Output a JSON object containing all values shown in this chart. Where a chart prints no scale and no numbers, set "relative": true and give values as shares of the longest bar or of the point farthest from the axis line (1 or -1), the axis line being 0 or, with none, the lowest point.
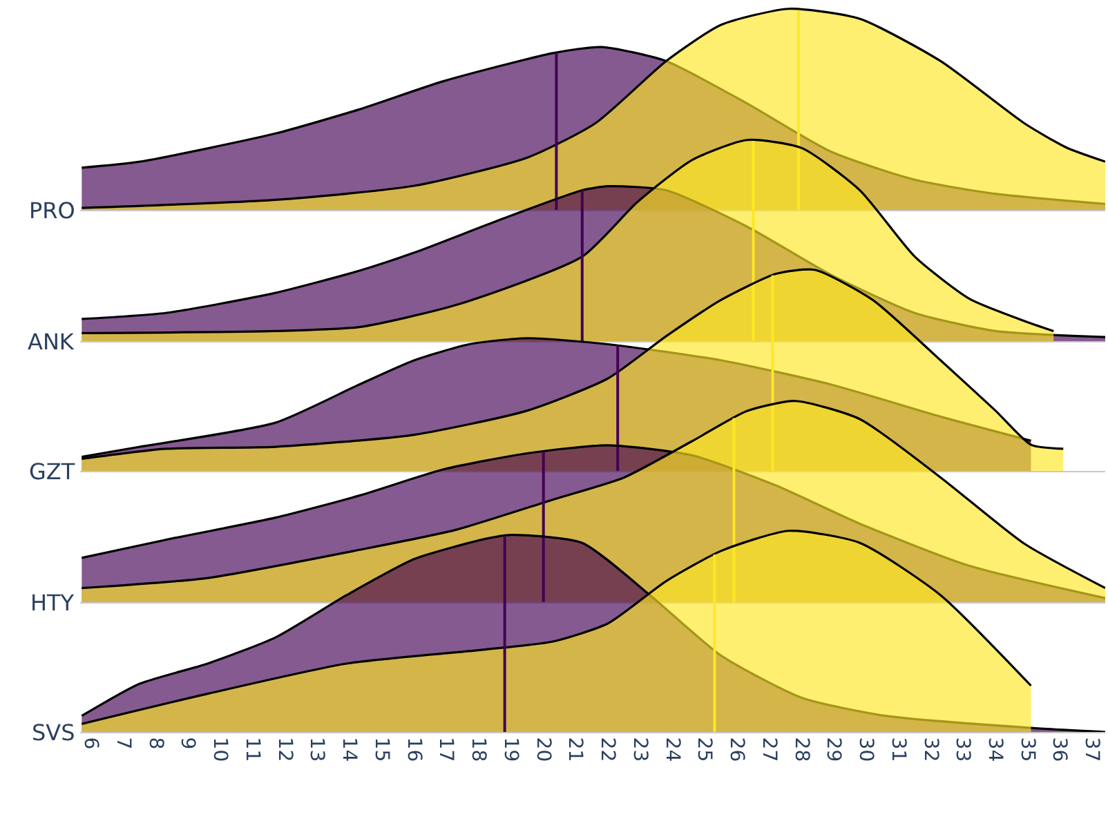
{
  "chart_data": [
    {
      "type": "area",
      "relative": true,
      "ylabel": "PRO",
      "xlim": [
        5.65,
        37.4
      ],
      "tick_labels": false,
      "grid": false,
      "legend": false,
      "series": [
        {
          "color": "#440154",
          "x": [
            5.7,
            7.5,
            11.7,
            14.3,
            16.9,
            20.3,
            21.8,
            23.8,
            26.3,
            28.9,
            31.5,
            34,
            37.4
          ],
          "values": [
            0.21,
            0.24,
            0.38,
            0.5,
            0.64,
            0.78,
            0.81,
            0.74,
            0.53,
            0.29,
            0.15,
            0.08,
            0.03
          ]
        },
        {
          "color": "#fde725",
          "x": [
            5.7,
            11.7,
            16,
            19.5,
            21.6,
            23.8,
            25.5,
            27.6,
            29.8,
            32.3,
            34.9,
            36.2,
            37.4
          ],
          "values": [
            0.01,
            0.05,
            0.12,
            0.26,
            0.43,
            0.74,
            0.92,
            1,
            0.95,
            0.74,
            0.43,
            0.31,
            0.24
          ]
        }
      ],
      "ref_lines": [
        {
          "axis": "x",
          "value": 20.4,
          "color": "#440154"
        },
        {
          "axis": "x",
          "value": 27.9,
          "color": "#fde725"
        }
      ]
    },
    {
      "type": "area",
      "relative": true,
      "ylabel": "ANK",
      "xlim": [
        5.65,
        37.4
      ],
      "tick_labels": false,
      "grid": false,
      "legend": false,
      "series": [
        {
          "color": "#440154",
          "x": [
            5.7,
            8.3,
            11.7,
            14.3,
            16,
            18.6,
            21.2,
            22,
            23.8,
            26.3,
            28.9,
            31.5,
            34,
            37.4
          ],
          "values": [
            0.11,
            0.14,
            0.24,
            0.35,
            0.44,
            0.6,
            0.75,
            0.77,
            0.75,
            0.57,
            0.33,
            0.14,
            0.05,
            0.02
          ]
        },
        {
          "color": "#fde725",
          "x": [
            5.7,
            11.7,
            14.3,
            17.3,
            21.2,
            22.9,
            24.6,
            26.3,
            28,
            29.8,
            31.5,
            33.2,
            34.9,
            35.8
          ],
          "values": [
            0.04,
            0.05,
            0.07,
            0.18,
            0.42,
            0.69,
            0.9,
            1,
            0.96,
            0.75,
            0.42,
            0.21,
            0.1,
            0.05
          ]
        }
      ],
      "ref_lines": [
        {
          "axis": "x",
          "value": 21.2,
          "color": "#440154"
        },
        {
          "axis": "x",
          "value": 26.5,
          "color": "#fde725"
        }
      ]
    },
    {
      "type": "area",
      "relative": true,
      "ylabel": "GZT",
      "xlim": [
        5.65,
        37.4
      ],
      "tick_labels": false,
      "grid": false,
      "legend": false,
      "series": [
        {
          "color": "#440154",
          "x": [
            5.7,
            7.5,
            11.7,
            14.3,
            16,
            17.7,
            19.5,
            22,
            25.5,
            28.9,
            32.3,
            35.1
          ],
          "values": [
            0.07,
            0.12,
            0.24,
            0.43,
            0.55,
            0.63,
            0.66,
            0.63,
            0.55,
            0.43,
            0.27,
            0.15
          ]
        },
        {
          "color": "#fde725",
          "x": [
            5.7,
            8.3,
            11.7,
            16,
            19.5,
            22,
            23.8,
            25.5,
            27.2,
            28.4,
            30.2,
            32.3,
            34,
            35.1,
            36.1
          ],
          "values": [
            0.06,
            0.11,
            0.12,
            0.18,
            0.3,
            0.46,
            0.67,
            0.85,
            0.98,
            1,
            0.85,
            0.55,
            0.3,
            0.13,
            0.11
          ]
        }
      ],
      "ref_lines": [
        {
          "axis": "x",
          "value": 22.3,
          "color": "#440154"
        },
        {
          "axis": "x",
          "value": 27.1,
          "color": "#fde725"
        }
      ]
    },
    {
      "type": "area",
      "relative": true,
      "ylabel": "HTY",
      "xlim": [
        5.65,
        37.4
      ],
      "tick_labels": false,
      "grid": false,
      "legend": false,
      "series": [
        {
          "color": "#440154",
          "x": [
            5.7,
            8.3,
            11.7,
            14.3,
            16.9,
            19.5,
            22,
            24.6,
            27.2,
            29.8,
            33.2,
            37.4
          ],
          "values": [
            0.22,
            0.31,
            0.42,
            0.53,
            0.66,
            0.74,
            0.78,
            0.73,
            0.58,
            0.39,
            0.18,
            0.02
          ]
        },
        {
          "color": "#fde725",
          "x": [
            5.7,
            9.6,
            14.3,
            17.3,
            20.3,
            22.5,
            24.6,
            26.3,
            27.8,
            29.8,
            32.3,
            34.9,
            37.4
          ],
          "values": [
            0.07,
            0.12,
            0.26,
            0.36,
            0.51,
            0.62,
            0.8,
            0.95,
            1,
            0.91,
            0.62,
            0.29,
            0.07
          ]
        }
      ],
      "ref_lines": [
        {
          "axis": "x",
          "value": 20,
          "color": "#440154"
        },
        {
          "axis": "x",
          "value": 25.9,
          "color": "#fde725"
        }
      ]
    },
    {
      "type": "area",
      "relative": true,
      "ylabel": "SVS",
      "xlim": [
        5.65,
        37.4
      ],
      "xticks": [
        6,
        7,
        8,
        9,
        10,
        11,
        12,
        13,
        14,
        15,
        16,
        17,
        18,
        19,
        20,
        21,
        22,
        23,
        24,
        25,
        26,
        27,
        28,
        29,
        30,
        31,
        32,
        33,
        34,
        35,
        36,
        37
      ],
      "tick_labels": "x",
      "grid": false,
      "legend": false,
      "series": [
        {
          "color": "#440154",
          "x": [
            5.7,
            7.5,
            9.6,
            11.7,
            13.9,
            16,
            18.2,
            19,
            21.2,
            23.3,
            25.5,
            28,
            30.6,
            35.1,
            37.4
          ],
          "values": [
            0.08,
            0.24,
            0.34,
            0.47,
            0.68,
            0.86,
            0.96,
            0.98,
            0.94,
            0.68,
            0.38,
            0.17,
            0.08,
            0.02,
            0
          ]
        },
        {
          "color": "#fde725",
          "x": [
            5.7,
            9.6,
            13.9,
            18.2,
            20.3,
            22,
            23.8,
            25.5,
            27.6,
            29.8,
            32.3,
            35.1
          ],
          "values": [
            0.04,
            0.19,
            0.34,
            0.41,
            0.45,
            0.54,
            0.75,
            0.9,
            1,
            0.94,
            0.68,
            0.23
          ]
        }
      ],
      "ref_lines": [
        {
          "axis": "x",
          "value": 18.8,
          "color": "#440154"
        },
        {
          "axis": "x",
          "value": 25.3,
          "color": "#fde725"
        }
      ]
    }
  ]
}
